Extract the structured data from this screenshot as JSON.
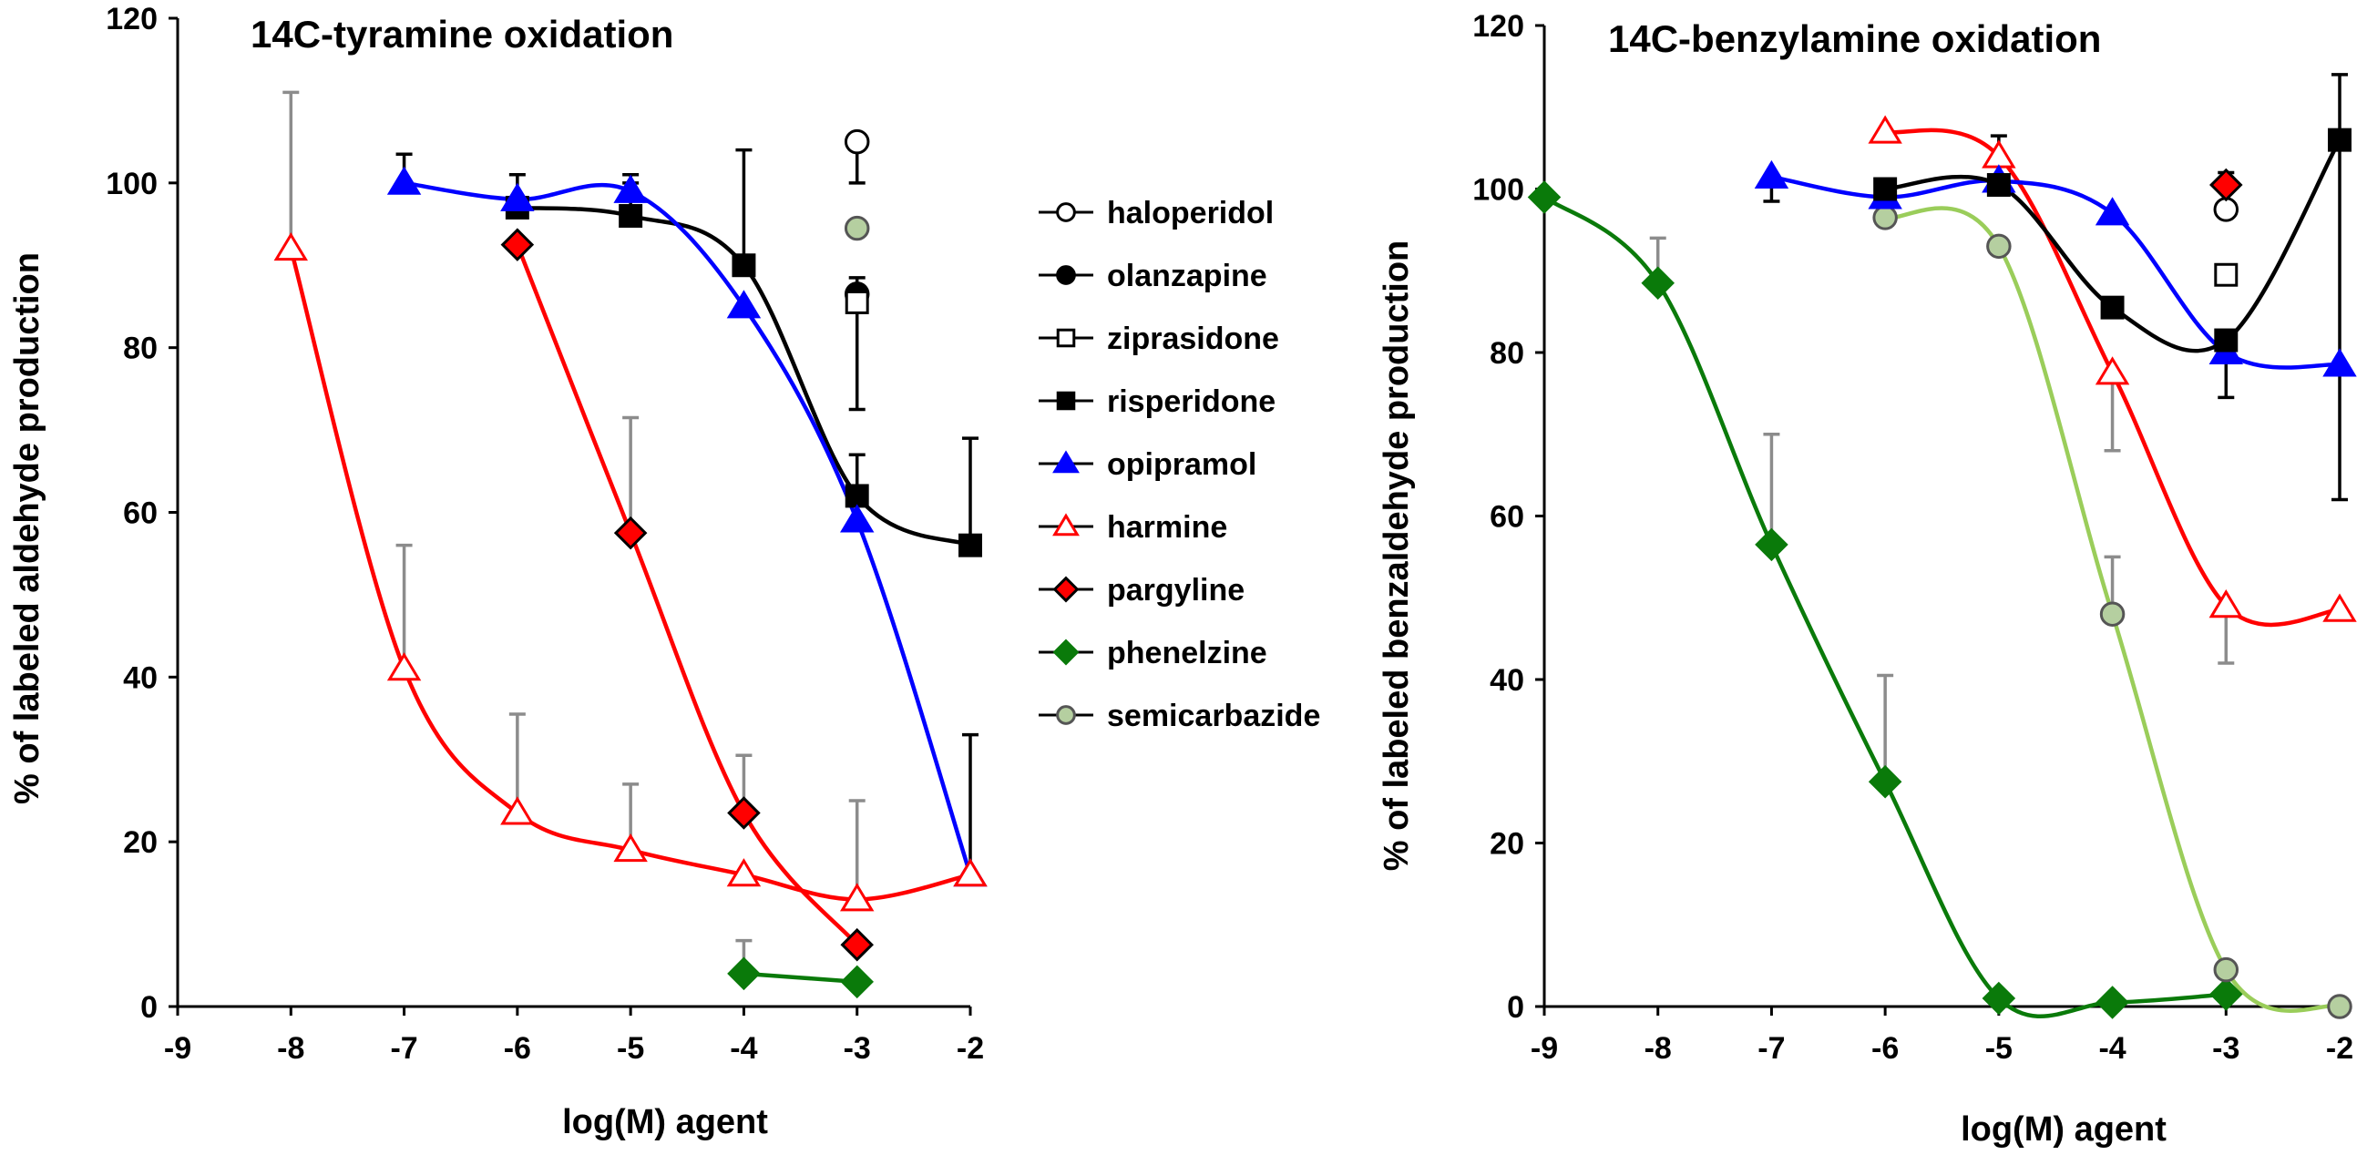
{
  "colors": {
    "blue": "#0000ff",
    "red": "#ff0000",
    "black": "#000000",
    "green": "#0a7a0a",
    "lightgreen": "#9acd5a",
    "semifill": "#b5cfa0",
    "errgray": "#8c8c8c",
    "white": "#ffffff"
  },
  "legend": {
    "items": [
      {
        "label": "haloperidol",
        "marker": "circle",
        "fill": "#ffffff",
        "stroke": "#000000"
      },
      {
        "label": "olanzapine",
        "marker": "circle",
        "fill": "#000000",
        "stroke": "#000000"
      },
      {
        "label": "ziprasidone",
        "marker": "square",
        "fill": "#ffffff",
        "stroke": "#000000"
      },
      {
        "label": "risperidone",
        "marker": "square",
        "fill": "#000000",
        "stroke": "#000000"
      },
      {
        "label": "opipramol",
        "marker": "triangle",
        "fill": "#0000ff",
        "stroke": "#0000ff"
      },
      {
        "label": "harmine",
        "marker": "triangle",
        "fill": "#ffffff",
        "stroke": "#ff0000"
      },
      {
        "label": "pargyline",
        "marker": "diamond",
        "fill": "#ff0000",
        "stroke": "#000000"
      },
      {
        "label": "phenelzine",
        "marker": "diamond",
        "fill": "#0a7a0a",
        "stroke": "#0a7a0a"
      },
      {
        "label": "semicarbazide",
        "marker": "circle",
        "fill": "#b5cfa0",
        "stroke": "#555555"
      }
    ]
  },
  "chart_data": [
    {
      "type": "line",
      "title": "14C-tyramine oxidation",
      "xlabel": "log(M) agent",
      "ylabel": "%  of labeled aldehyde production",
      "xlim": [
        -9,
        -2
      ],
      "ylim": [
        0,
        120
      ],
      "xticks": [
        -9,
        -8,
        -7,
        -6,
        -5,
        -4,
        -3,
        -2
      ],
      "yticks": [
        0,
        20,
        40,
        60,
        80,
        100,
        120
      ],
      "series": [
        {
          "name": "risperidone",
          "line": "#000000",
          "marker": "square",
          "fill": "#000000",
          "stroke": "#000000",
          "err": "#000000",
          "x": [
            -6,
            -5,
            -4,
            -3,
            -2
          ],
          "y": [
            97,
            96,
            90,
            62,
            56
          ],
          "err_up": [
            4,
            4,
            14,
            5,
            13
          ]
        },
        {
          "name": "opipramol",
          "line": "#0000ff",
          "marker": "triangle",
          "fill": "#0000ff",
          "stroke": "#0000ff",
          "err": "#000000",
          "x": [
            -7,
            -6,
            -5,
            -4,
            -3,
            -2
          ],
          "y": [
            100,
            98,
            99,
            85,
            59,
            16
          ],
          "err_up": [
            3.5,
            0,
            2,
            0,
            0,
            17
          ]
        },
        {
          "name": "pargyline",
          "line": "#ff0000",
          "marker": "diamond",
          "fill": "#ff0000",
          "stroke": "#000000",
          "err": "#8c8c8c",
          "x": [
            -6,
            -5,
            -4,
            -3
          ],
          "y": [
            92.5,
            57.5,
            23.5,
            7.5
          ],
          "err_up": [
            0,
            14,
            7,
            0
          ]
        },
        {
          "name": "harmine",
          "line": "#ff0000",
          "marker": "triangle",
          "fill": "#ffffff",
          "stroke": "#ff0000",
          "err": "#8c8c8c",
          "x": [
            -8,
            -7,
            -6,
            -5,
            -4,
            -3,
            -2
          ],
          "y": [
            92,
            41,
            23.5,
            19,
            16,
            13,
            16
          ],
          "err_up": [
            19,
            15,
            12,
            8,
            0,
            12,
            0
          ]
        },
        {
          "name": "phenelzine",
          "line": "#0a7a0a",
          "marker": "diamond",
          "fill": "#0a7a0a",
          "stroke": "#0a7a0a",
          "err": "#8c8c8c",
          "x": [
            -4,
            -3
          ],
          "y": [
            4,
            3
          ],
          "err_up": [
            4,
            0
          ]
        },
        {
          "name": "haloperidol",
          "line": "none",
          "marker": "circle",
          "fill": "#ffffff",
          "stroke": "#000000",
          "err": "#000000",
          "x": [
            -3
          ],
          "y": [
            105
          ],
          "err_up": [
            0
          ],
          "err_down": [
            5
          ]
        },
        {
          "name": "semicarbazide",
          "line": "none",
          "marker": "circle",
          "fill": "#b5cfa0",
          "stroke": "#555555",
          "err": "#000000",
          "x": [
            -3
          ],
          "y": [
            94.5
          ],
          "err_up": [
            0
          ]
        },
        {
          "name": "olanzapine",
          "line": "none",
          "marker": "circle",
          "fill": "#000000",
          "stroke": "#000000",
          "err": "#000000",
          "x": [
            -3
          ],
          "y": [
            86.5
          ],
          "err_up": [
            2
          ]
        },
        {
          "name": "ziprasidone",
          "line": "none",
          "marker": "square",
          "fill": "#ffffff",
          "stroke": "#000000",
          "err": "#000000",
          "x": [
            -3
          ],
          "y": [
            85.5
          ],
          "err_up": [
            0
          ],
          "err_down": [
            13
          ]
        }
      ]
    },
    {
      "type": "line",
      "title": "14C-benzylamine oxidation",
      "xlabel": "log(M) agent",
      "ylabel": "%  of labeled benzaldehyde production",
      "xlim": [
        -9,
        -2
      ],
      "ylim": [
        0,
        120
      ],
      "xticks": [
        -9,
        -8,
        -7,
        -6,
        -5,
        -4,
        -3,
        -2
      ],
      "yticks": [
        0,
        20,
        40,
        60,
        80,
        100,
        120
      ],
      "series": [
        {
          "name": "phenelzine",
          "line": "#0a7a0a",
          "marker": "diamond",
          "fill": "#0a7a0a",
          "stroke": "#0a7a0a",
          "err": "#8c8c8c",
          "x": [
            -9,
            -8,
            -7,
            -6,
            -5,
            -4,
            -3
          ],
          "y": [
            99,
            88.5,
            56.5,
            27.5,
            1,
            0.5,
            1.5
          ],
          "err_up": [
            0,
            5.5,
            13.5,
            13,
            0,
            0,
            0
          ]
        },
        {
          "name": "semicarbazide",
          "line": "#9acd5a",
          "marker": "circle",
          "fill": "#b5cfa0",
          "stroke": "#555555",
          "err": "#8c8c8c",
          "x": [
            -6,
            -5,
            -4,
            -3,
            -2
          ],
          "y": [
            96.5,
            93,
            48,
            4.5,
            0
          ],
          "err_up": [
            0,
            0,
            7,
            0,
            0
          ]
        },
        {
          "name": "harmine",
          "line": "#ff0000",
          "marker": "triangle",
          "fill": "#ffffff",
          "stroke": "#ff0000",
          "err": "#8c8c8c",
          "x": [
            -6,
            -5,
            -4,
            -3,
            -2
          ],
          "y": [
            107,
            104,
            77.5,
            49,
            48.5
          ],
          "err_up": [
            0,
            0,
            0,
            0,
            0
          ],
          "err_down": [
            0,
            0,
            9.5,
            7,
            0
          ]
        },
        {
          "name": "opipramol",
          "line": "#0000ff",
          "marker": "triangle",
          "fill": "#0000ff",
          "stroke": "#0000ff",
          "err": "#000000",
          "x": [
            -7,
            -6,
            -5,
            -4,
            -3,
            -2
          ],
          "y": [
            101.5,
            99,
            101,
            97,
            80,
            78.5
          ],
          "err_up": [
            0,
            0,
            0,
            0,
            0,
            0
          ],
          "err_down": [
            3,
            0,
            0,
            0,
            0,
            0
          ]
        },
        {
          "name": "risperidone",
          "line": "#000000",
          "marker": "square",
          "fill": "#000000",
          "stroke": "#000000",
          "err": "#000000",
          "x": [
            -6,
            -5,
            -4,
            -3,
            -2
          ],
          "y": [
            100,
            100.5,
            85.5,
            81.5,
            106
          ],
          "err_up": [
            0,
            6,
            0,
            0,
            8
          ],
          "err_down": [
            0,
            0,
            0,
            7,
            44
          ]
        },
        {
          "name": "haloperidol",
          "line": "none",
          "marker": "circle",
          "fill": "#ffffff",
          "stroke": "#000000",
          "err": "#000000",
          "x": [
            -3
          ],
          "y": [
            97.5
          ],
          "err_up": [
            0
          ]
        },
        {
          "name": "ziprasidone",
          "line": "none",
          "marker": "square",
          "fill": "#ffffff",
          "stroke": "#000000",
          "err": "#000000",
          "x": [
            -3
          ],
          "y": [
            89.5
          ],
          "err_up": [
            0
          ]
        },
        {
          "name": "pargyline",
          "line": "none",
          "marker": "diamond",
          "fill": "#ff0000",
          "stroke": "#000000",
          "err": "#000000",
          "x": [
            -3
          ],
          "y": [
            100.5
          ],
          "err_up": [
            1.5
          ]
        }
      ]
    }
  ]
}
